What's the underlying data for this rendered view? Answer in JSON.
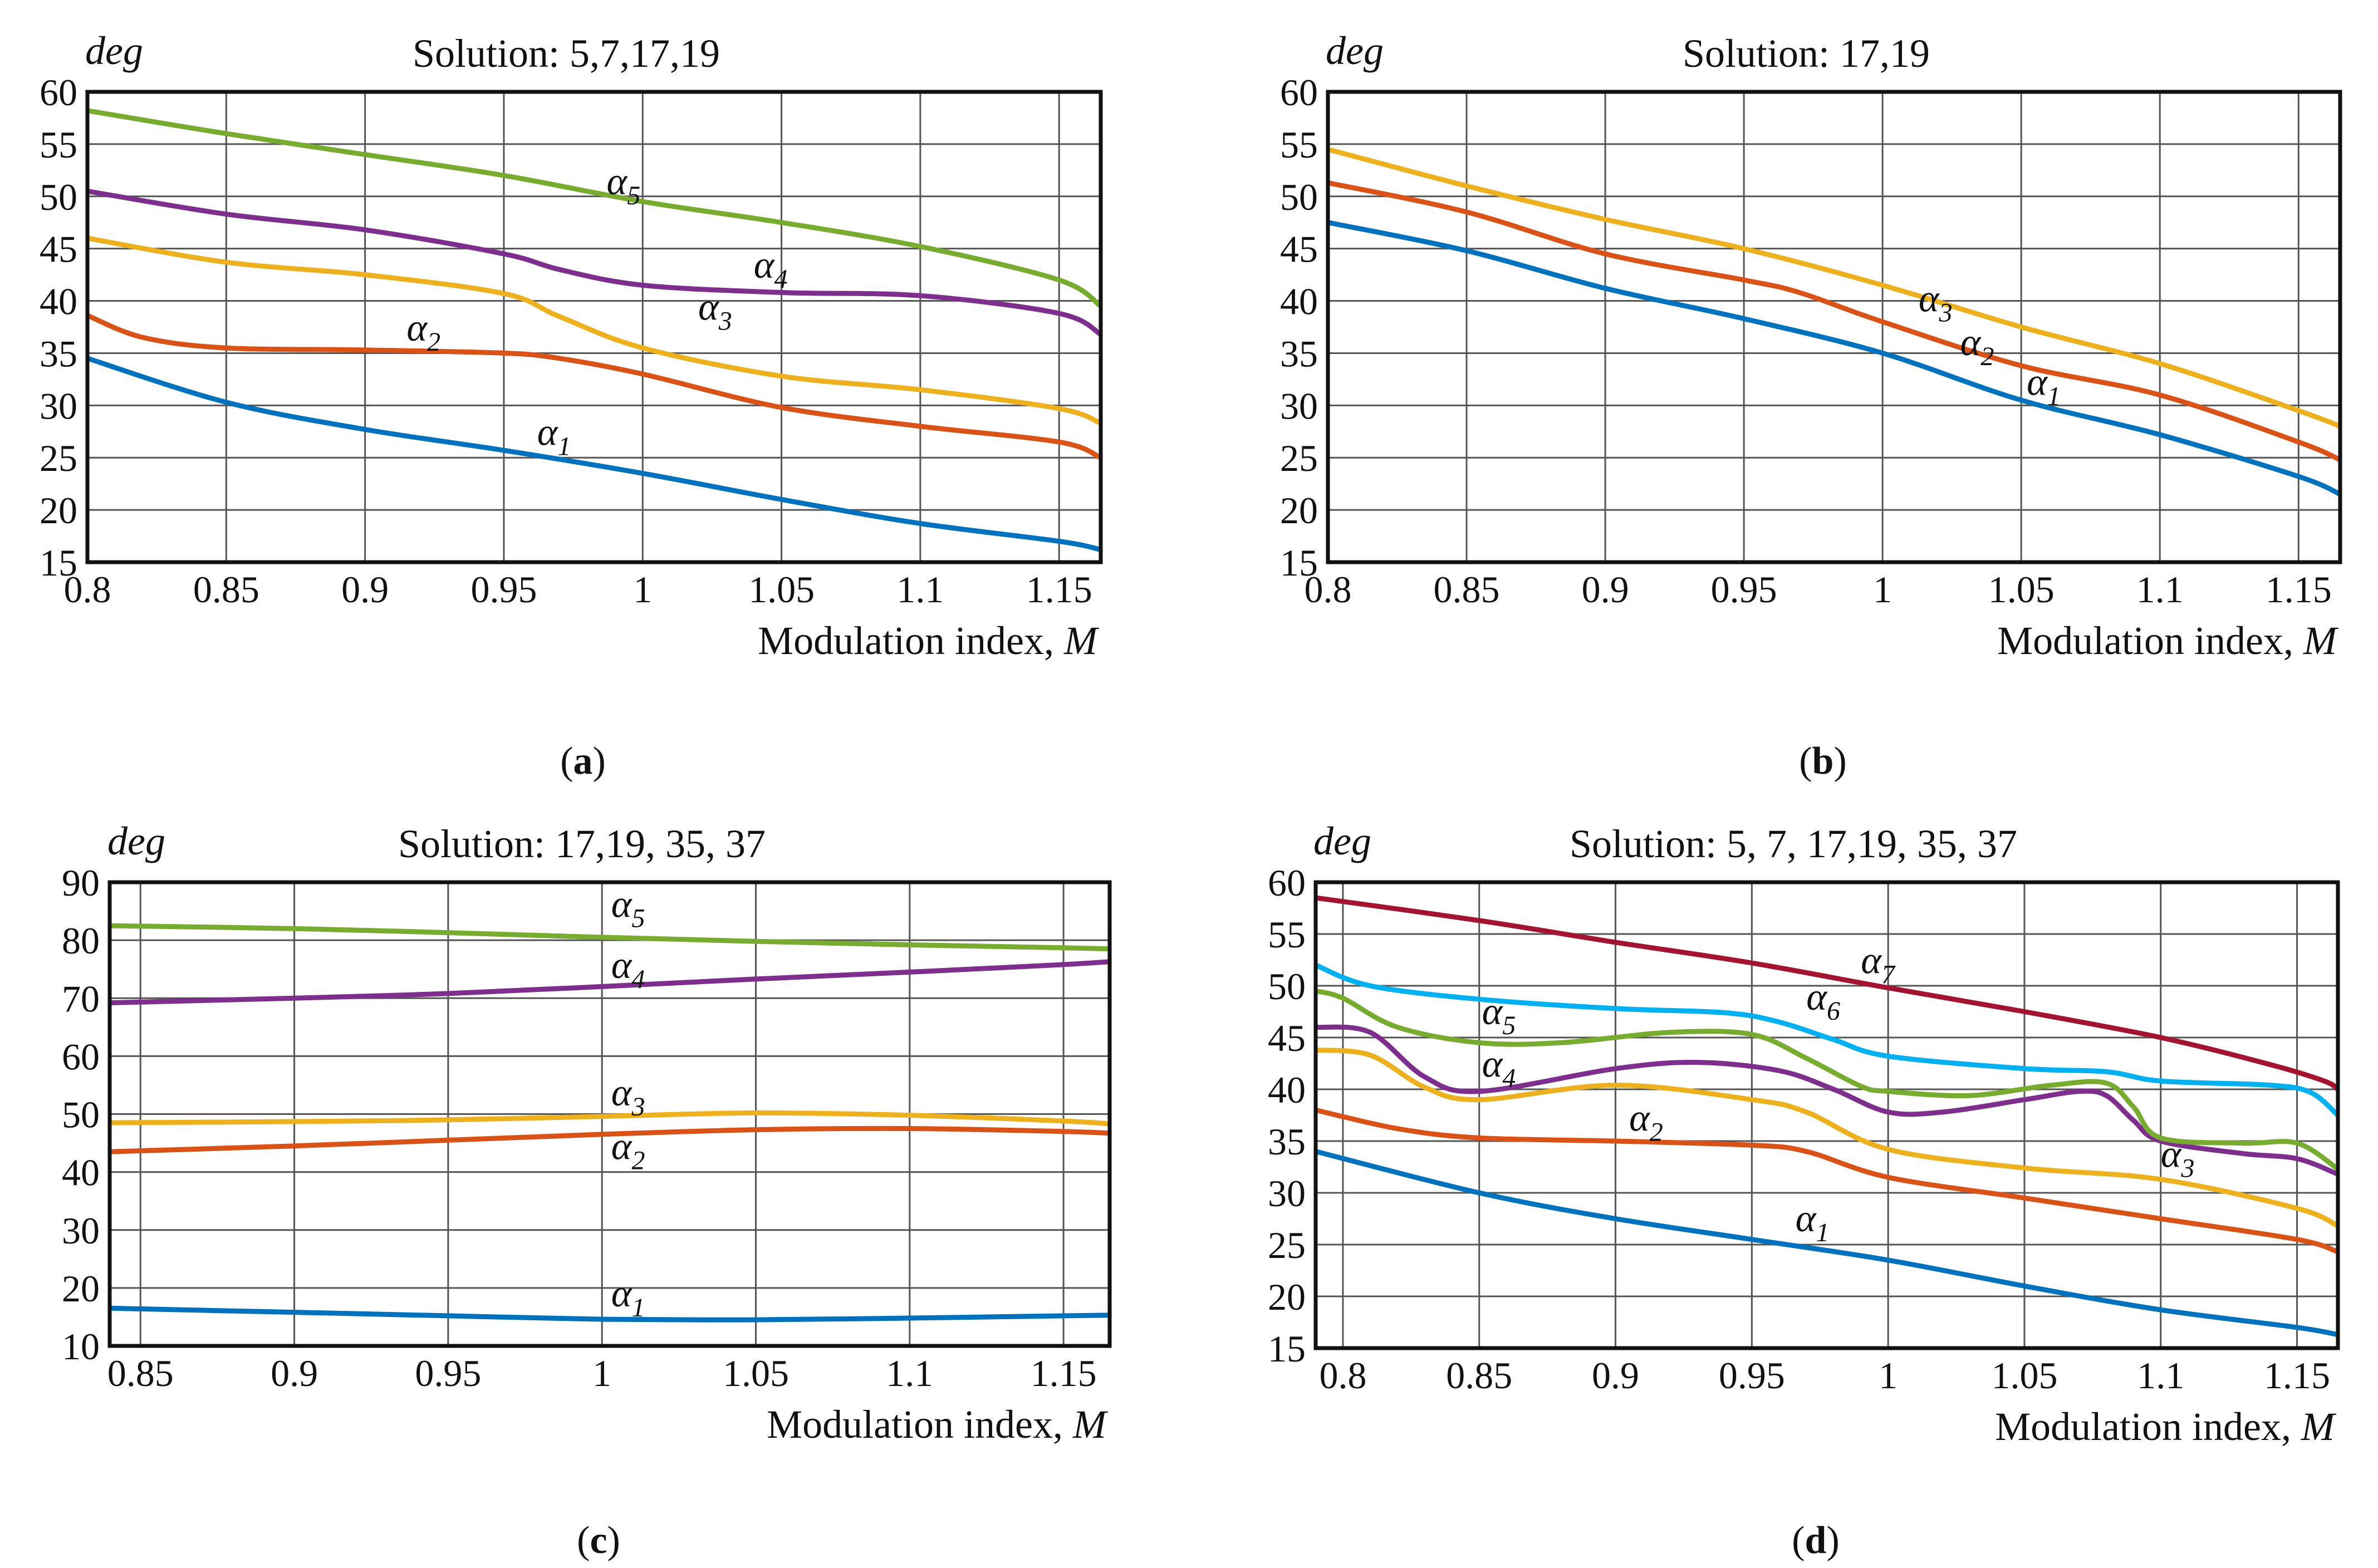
{
  "chart_data": [
    {
      "type": "line",
      "panel": "(a)",
      "caption": "a",
      "title": "Solution: 5,7,17,19",
      "ylabel": "deg",
      "xlabel": "Modulation index, ",
      "xlabel_var": "M",
      "xlim": [
        0.8,
        1.165
      ],
      "ylim": [
        15,
        60
      ],
      "xticks": [
        0.8,
        0.85,
        0.9,
        0.95,
        1,
        1.05,
        1.1,
        1.15
      ],
      "xtick_labels": [
        "0.8",
        "0.85",
        "0.9",
        "0.95",
        "1",
        "1.05",
        "1.1",
        "1.15"
      ],
      "yticks": [
        15,
        20,
        25,
        30,
        35,
        40,
        45,
        50,
        55,
        60
      ],
      "ytick_labels": [
        "15",
        "20",
        "25",
        "30",
        "35",
        "40",
        "45",
        "50",
        "55",
        "60"
      ],
      "grid": true,
      "series": [
        {
          "name": "α",
          "sub": "1",
          "color": "#0072BD",
          "label_at": [
            0.962,
            26.2
          ],
          "x": [
            0.8,
            0.85,
            0.9,
            0.95,
            1,
            1.05,
            1.1,
            1.15,
            1.165
          ],
          "y": [
            34.5,
            30.3,
            27.7,
            25.7,
            23.5,
            21,
            18.7,
            17,
            16.2
          ]
        },
        {
          "name": "α",
          "sub": "2",
          "color": "#D95319",
          "label_at": [
            0.915,
            36.2
          ],
          "x": [
            0.8,
            0.82,
            0.85,
            0.9,
            0.95,
            0.97,
            1,
            1.05,
            1.1,
            1.15,
            1.165
          ],
          "y": [
            38.6,
            36.5,
            35.5,
            35.3,
            35,
            34.5,
            33,
            29.8,
            28,
            26.5,
            25
          ]
        },
        {
          "name": "α",
          "sub": "3",
          "color": "#EDB120",
          "label_at": [
            1.02,
            38.2
          ],
          "x": [
            0.8,
            0.85,
            0.9,
            0.95,
            0.97,
            1,
            1.05,
            1.1,
            1.15,
            1.165
          ],
          "y": [
            46,
            43.7,
            42.5,
            40.7,
            38.5,
            35.5,
            32.8,
            31.5,
            29.7,
            28.3
          ]
        },
        {
          "name": "α",
          "sub": "4",
          "color": "#7E2F8E",
          "label_at": [
            1.04,
            42.2
          ],
          "x": [
            0.8,
            0.85,
            0.9,
            0.95,
            0.97,
            1,
            1.05,
            1.1,
            1.15,
            1.165
          ],
          "y": [
            50.5,
            48.3,
            46.8,
            44.5,
            43,
            41.5,
            40.8,
            40.5,
            38.8,
            36.8
          ]
        },
        {
          "name": "α",
          "sub": "5",
          "color": "#77AC30",
          "label_at": [
            0.987,
            50.2
          ],
          "x": [
            0.8,
            0.85,
            0.9,
            0.95,
            1,
            1.05,
            1.1,
            1.15,
            1.165
          ],
          "y": [
            58.2,
            56,
            54,
            52,
            49.5,
            47.5,
            45.2,
            42,
            39.5
          ]
        }
      ]
    },
    {
      "type": "line",
      "panel": "(b)",
      "caption": "b",
      "title": "Solution: 17,19",
      "ylabel": "deg",
      "xlabel": "Modulation index, ",
      "xlabel_var": "M",
      "xlim": [
        0.8,
        1.165
      ],
      "ylim": [
        15,
        60
      ],
      "xticks": [
        0.8,
        0.85,
        0.9,
        0.95,
        1,
        1.05,
        1.1,
        1.15
      ],
      "xtick_labels": [
        "0.8",
        "0.85",
        "0.9",
        "0.95",
        "1",
        "1.05",
        "1.1",
        "1.15"
      ],
      "yticks": [
        15,
        20,
        25,
        30,
        35,
        40,
        45,
        50,
        55,
        60
      ],
      "ytick_labels": [
        "15",
        "20",
        "25",
        "30",
        "35",
        "40",
        "45",
        "50",
        "55",
        "60"
      ],
      "grid": true,
      "series": [
        {
          "name": "α",
          "sub": "1",
          "color": "#0072BD",
          "label_at": [
            1.052,
            31
          ],
          "x": [
            0.8,
            0.85,
            0.9,
            0.95,
            1,
            1.05,
            1.1,
            1.15,
            1.165
          ],
          "y": [
            47.5,
            44.8,
            41.2,
            38.3,
            35,
            30.5,
            27.2,
            23.2,
            21.5
          ]
        },
        {
          "name": "α",
          "sub": "2",
          "color": "#D95319",
          "label_at": [
            1.028,
            34.8
          ],
          "x": [
            0.8,
            0.85,
            0.9,
            0.95,
            0.97,
            1,
            1.05,
            1.1,
            1.15,
            1.165
          ],
          "y": [
            51.3,
            48.5,
            44.5,
            42,
            40.8,
            38,
            33.8,
            31,
            26.5,
            24.8
          ]
        },
        {
          "name": "α",
          "sub": "3",
          "color": "#EDB120",
          "label_at": [
            1.01,
            39
          ]
        },
        {
          "name": "α",
          "sub": "3",
          "color": "#EDB120",
          "label_at": [
            1.013,
            39
          ],
          "x": [
            0.8,
            0.85,
            0.9,
            0.95,
            1,
            1.05,
            1.1,
            1.15,
            1.165
          ],
          "y": [
            54.5,
            51,
            47.8,
            45,
            41.5,
            37.5,
            34,
            29.5,
            28
          ]
        }
      ]
    },
    {
      "type": "line",
      "panel": "(c)",
      "caption": "c",
      "title": "Solution: 17,19, 35, 37",
      "ylabel": "deg",
      "xlabel": "Modulation index, ",
      "xlabel_var": "M",
      "xlim": [
        0.84,
        1.165
      ],
      "ylim": [
        10,
        90
      ],
      "xticks": [
        0.85,
        0.9,
        0.95,
        1,
        1.05,
        1.1,
        1.15
      ],
      "xtick_labels": [
        "0.85",
        "0.9",
        "0.95",
        "1",
        "1.05",
        "1.1",
        "1.15"
      ],
      "yticks": [
        10,
        20,
        30,
        40,
        50,
        60,
        70,
        80,
        90
      ],
      "ytick_labels": [
        "10",
        "20",
        "30",
        "40",
        "50",
        "60",
        "70",
        "80",
        "90"
      ],
      "grid": true,
      "series": [
        {
          "name": "α",
          "sub": "1",
          "color": "#0072BD",
          "label_at": [
            1.003,
            16.8
          ],
          "x": [
            0.84,
            0.9,
            0.95,
            1,
            1.05,
            1.1,
            1.15,
            1.165
          ],
          "y": [
            16.5,
            15.8,
            15.2,
            14.6,
            14.5,
            14.8,
            15.2,
            15.3
          ]
        },
        {
          "name": "α",
          "sub": "2",
          "color": "#D95319",
          "label_at": [
            1.003,
            42.2
          ],
          "x": [
            0.84,
            0.9,
            0.95,
            1,
            1.05,
            1.1,
            1.15,
            1.165
          ],
          "y": [
            43.5,
            44.5,
            45.5,
            46.5,
            47.3,
            47.5,
            47,
            46.7
          ]
        },
        {
          "name": "α",
          "sub": "3",
          "color": "#EDB120",
          "label_at": [
            1.003,
            51.5
          ],
          "x": [
            0.84,
            0.9,
            0.95,
            1,
            1.05,
            1.1,
            1.15,
            1.165
          ],
          "y": [
            48.5,
            48.7,
            49,
            49.6,
            50.2,
            49.8,
            48.8,
            48.3
          ]
        },
        {
          "name": "α",
          "sub": "4",
          "color": "#7E2F8E",
          "label_at": [
            1.003,
            73.5
          ],
          "x": [
            0.84,
            0.9,
            0.95,
            1,
            1.05,
            1.1,
            1.15,
            1.165
          ],
          "y": [
            69.2,
            70,
            70.8,
            72,
            73.3,
            74.5,
            75.8,
            76.3
          ]
        },
        {
          "name": "α",
          "sub": "5",
          "color": "#77AC30",
          "label_at": [
            1.003,
            84
          ],
          "x": [
            0.84,
            0.9,
            0.95,
            1,
            1.05,
            1.1,
            1.15,
            1.165
          ],
          "y": [
            82.5,
            82,
            81.3,
            80.5,
            79.8,
            79.2,
            78.7,
            78.5
          ]
        }
      ]
    },
    {
      "type": "line",
      "panel": "(d)",
      "caption": "d",
      "title": "Solution: 5, 7, 17,19, 35, 37",
      "ylabel": "deg",
      "xlabel": "Modulation index, ",
      "xlabel_var": "M",
      "xlim": [
        0.79,
        1.165
      ],
      "ylim": [
        15,
        60
      ],
      "xticks": [
        0.8,
        0.85,
        0.9,
        0.95,
        1,
        1.05,
        1.1,
        1.15
      ],
      "xtick_labels": [
        "0.8",
        "0.85",
        "0.9",
        "0.95",
        "1",
        "1.05",
        "1.1",
        "1.15"
      ],
      "yticks": [
        15,
        20,
        25,
        30,
        35,
        40,
        45,
        50,
        55,
        60
      ],
      "ytick_labels": [
        "15",
        "20",
        "25",
        "30",
        "35",
        "40",
        "45",
        "50",
        "55",
        "60"
      ],
      "grid": true,
      "series": [
        {
          "name": "α",
          "sub": "1",
          "color": "#0072BD",
          "label_at": [
            0.966,
            26.3
          ],
          "x": [
            0.79,
            0.85,
            0.9,
            0.95,
            1,
            1.05,
            1.1,
            1.15,
            1.165
          ],
          "y": [
            34,
            30,
            27.5,
            25.5,
            23.5,
            21,
            18.7,
            17,
            16.3
          ]
        },
        {
          "name": "α",
          "sub": "2",
          "color": "#D95319",
          "label_at": [
            0.905,
            36
          ],
          "x": [
            0.79,
            0.82,
            0.85,
            0.9,
            0.95,
            0.97,
            1,
            1.05,
            1.1,
            1.15,
            1.165
          ],
          "y": [
            38,
            36.2,
            35.3,
            35,
            34.6,
            34,
            31.5,
            29.5,
            27.5,
            25.5,
            24.3
          ]
        },
        {
          "name": "α",
          "sub": "3",
          "color": "#EDB120",
          "label_at": [
            1.1,
            32.5
          ],
          "x": [
            0.79,
            0.81,
            0.83,
            0.85,
            0.9,
            0.95,
            0.97,
            1,
            1.05,
            1.1,
            1.15,
            1.165
          ],
          "y": [
            43.8,
            43.3,
            40.2,
            39,
            40.4,
            39,
            37.8,
            34.2,
            32.4,
            31.3,
            28.5,
            26.8
          ]
        },
        {
          "name": "α",
          "sub": "4",
          "color": "#7E2F8E",
          "label_at": [
            0.851,
            41.2
          ],
          "x": [
            0.79,
            0.81,
            0.83,
            0.85,
            0.9,
            0.93,
            0.96,
            0.98,
            1,
            1.02,
            1.05,
            1.07,
            1.08,
            1.09,
            1.1,
            1.13,
            1.15,
            1.165
          ],
          "y": [
            46,
            45.5,
            41.2,
            39.8,
            42,
            42.6,
            41.8,
            40,
            37.8,
            37.8,
            39,
            39.8,
            39.4,
            37,
            35,
            33.8,
            33.3,
            31.8
          ]
        },
        {
          "name": "α",
          "sub": "5",
          "color": "#77AC30",
          "label_at": [
            0.851,
            46.3
          ],
          "x": [
            0.79,
            0.8,
            0.82,
            0.85,
            0.88,
            0.92,
            0.95,
            0.97,
            0.99,
            1,
            1.03,
            1.06,
            1.08,
            1.09,
            1.1,
            1.13,
            1.15,
            1.165
          ],
          "y": [
            49.5,
            48.8,
            46,
            44.5,
            44.5,
            45.5,
            45.3,
            43,
            40.3,
            39.8,
            39.4,
            40.4,
            40.6,
            38.3,
            35.3,
            34.8,
            34.8,
            32.3
          ]
        },
        {
          "name": "α",
          "sub": "6",
          "color": "#00B0F0",
          "label_at": [
            0.97,
            47.7
          ],
          "x": [
            0.79,
            0.81,
            0.85,
            0.9,
            0.94,
            0.96,
            0.98,
            1,
            1.05,
            1.08,
            1.1,
            1.14,
            1.155,
            1.165
          ],
          "y": [
            52,
            50,
            48.7,
            47.8,
            47.4,
            46.5,
            44.8,
            43.2,
            42,
            41.7,
            40.8,
            40.4,
            39.7,
            37.5
          ]
        },
        {
          "name": "α",
          "sub": "7",
          "color": "#A2142F",
          "label_at": [
            0.99,
            51.2
          ],
          "x": [
            0.79,
            0.85,
            0.9,
            0.95,
            1,
            1.05,
            1.1,
            1.14,
            1.16,
            1.165
          ],
          "y": [
            58.5,
            56.3,
            54.2,
            52.2,
            49.8,
            47.5,
            45,
            42.4,
            40.8,
            40
          ]
        }
      ]
    }
  ]
}
